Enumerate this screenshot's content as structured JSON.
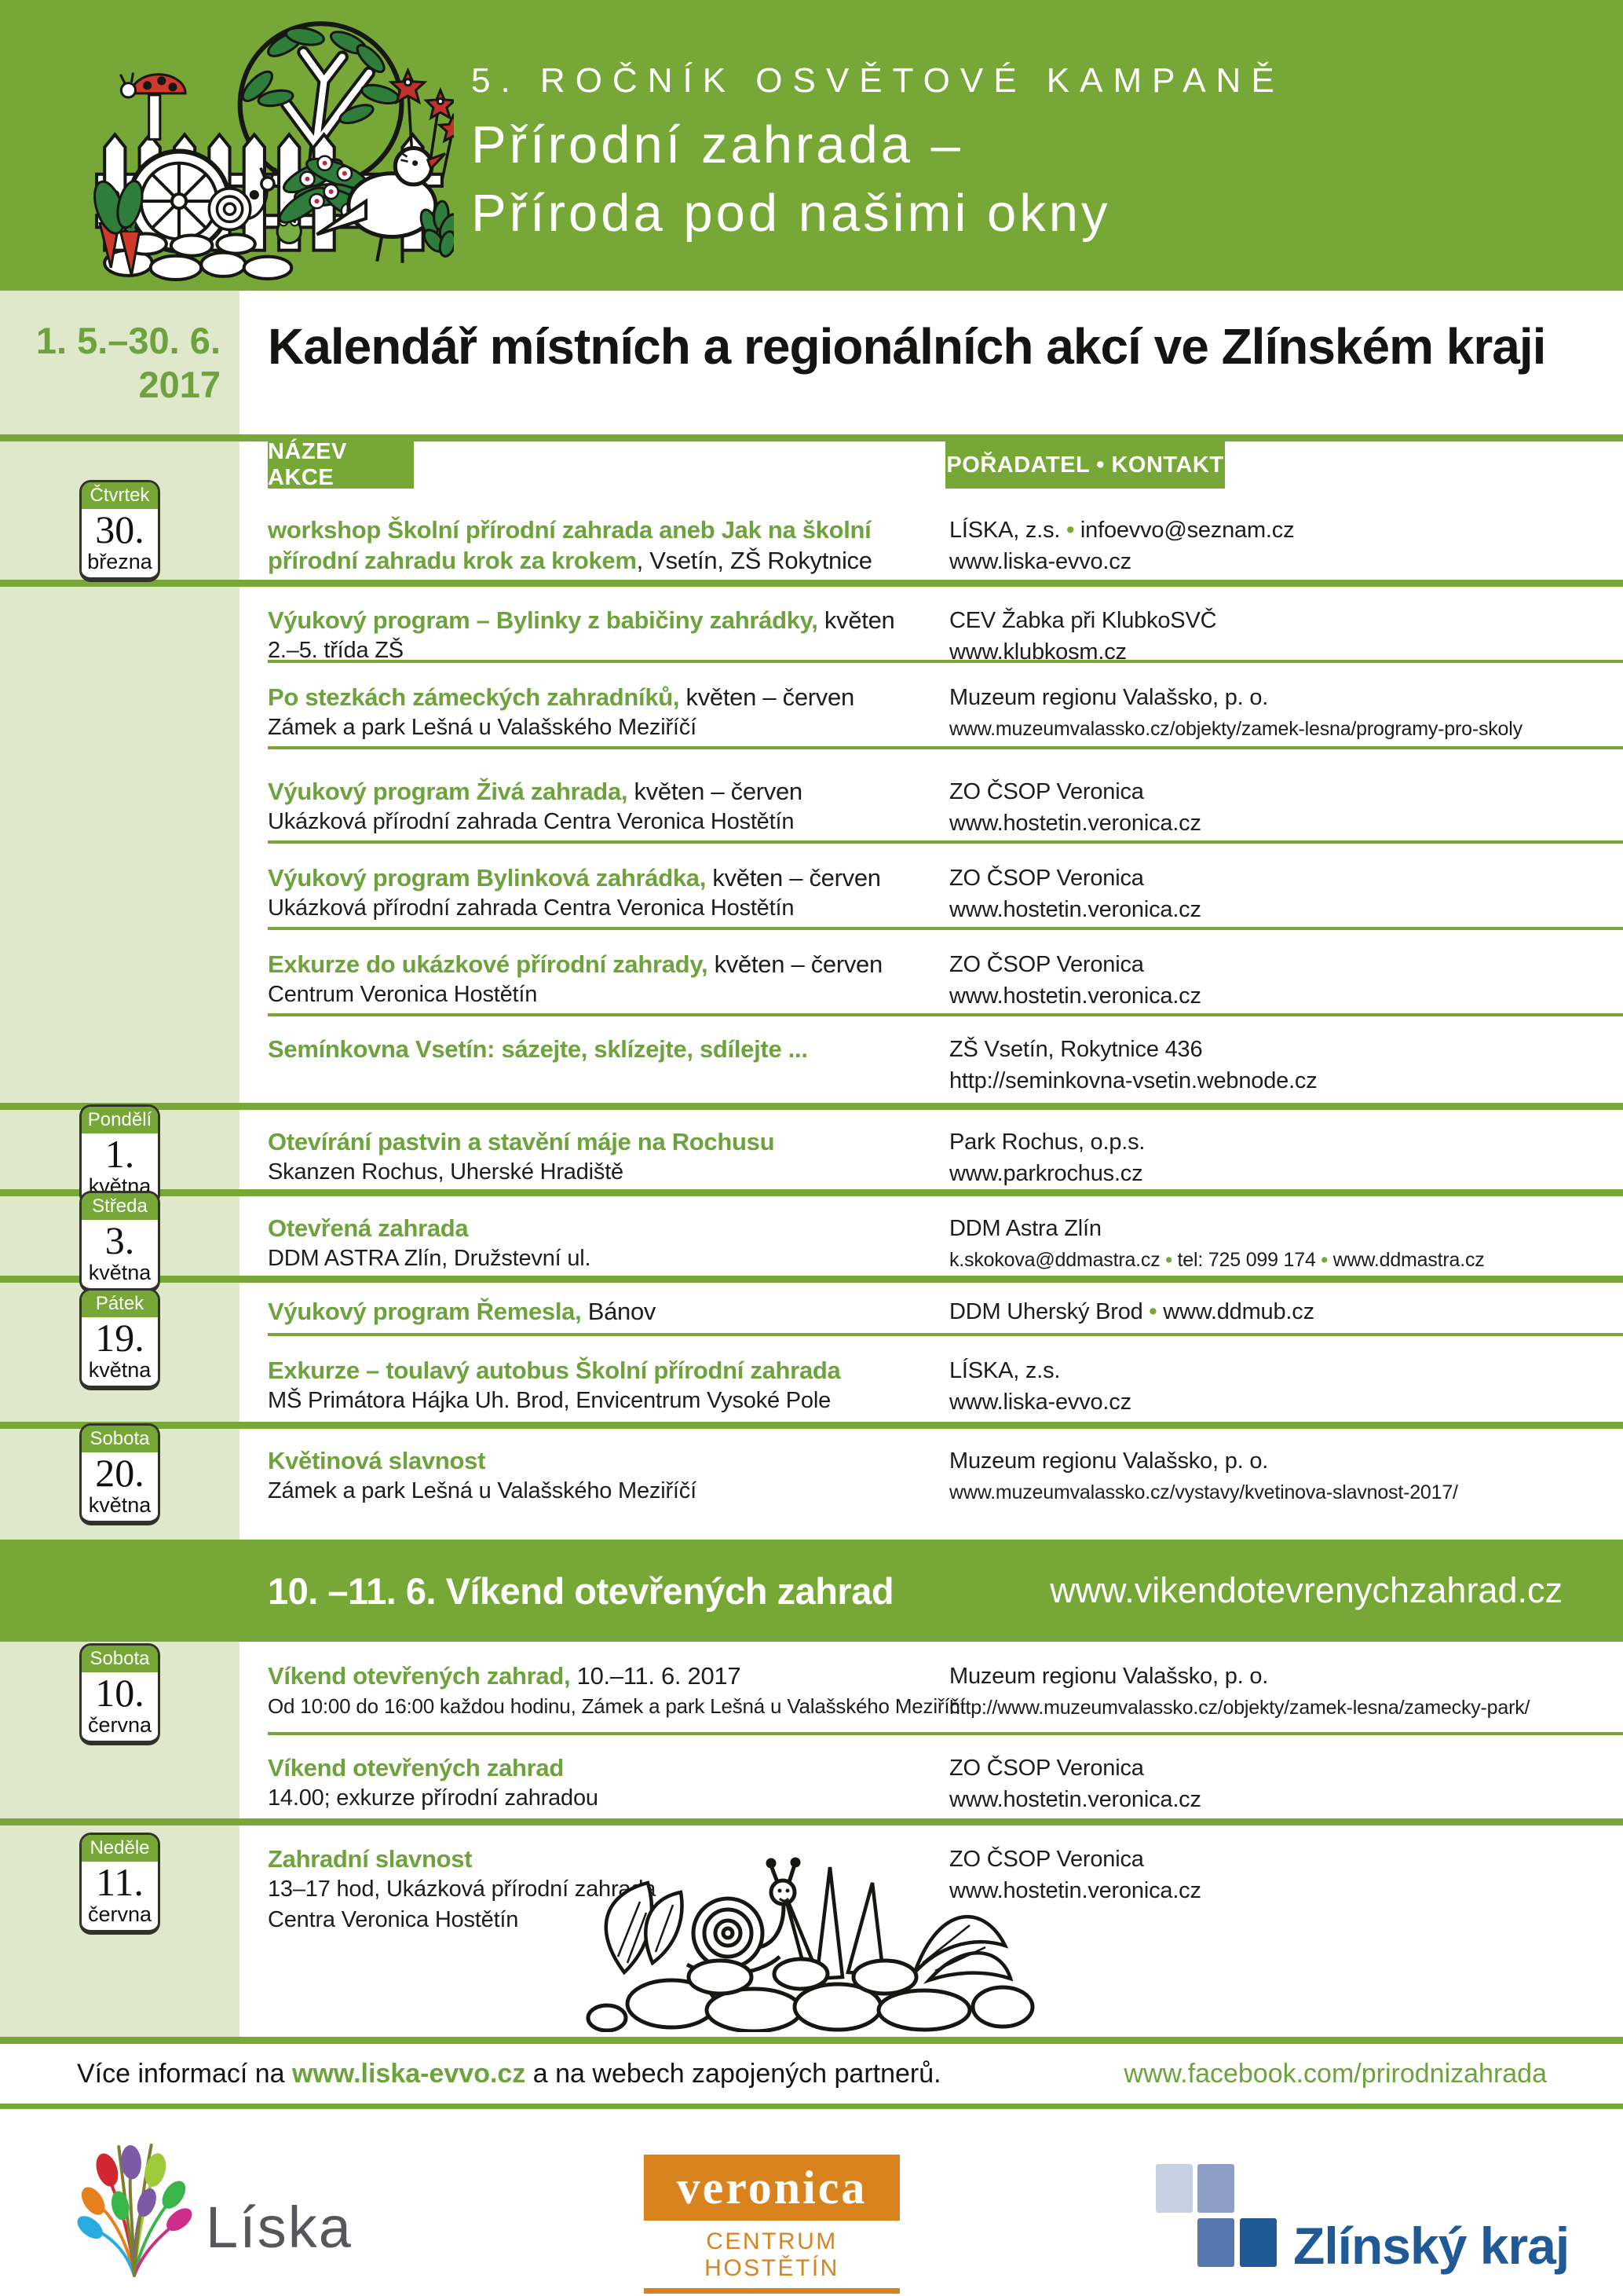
{
  "header": {
    "campaign": "5. ROČNÍK OSVĚTOVÉ KAMPANĚ",
    "title_line1": "Přírodní zahrada –",
    "title_line2": "Příroda pod našimi okny"
  },
  "date_range": {
    "line1": "1. 5.–30. 6.",
    "line2": "2017"
  },
  "page_title": "Kalendář místních a regionálních akcí ve Zlínském kraji",
  "table": {
    "col1": "NÁZEV AKCE",
    "col2": "POŘADATEL • KONTAKT"
  },
  "events": [
    {
      "badge": {
        "day": "Čtvrtek",
        "num": "30.",
        "month": "března"
      },
      "title": "workshop Školní přírodní zahrada aneb Jak na školní přírodní zahradu krok za krokem",
      "rest": ", Vsetín, ZŠ Rokytnice",
      "details": [],
      "right": [
        "LÍSKA, z.s. • infoevvo@seznam.cz",
        "www.liska-evvo.cz"
      ],
      "divider": null
    },
    {
      "title": "Výukový program – Bylinky z babičiny zahrádky,",
      "rest": " květen",
      "details": [
        "2.–5. třída ZŠ"
      ],
      "right": [
        "CEV Žabka při KlubkoSVČ",
        "www.klubkosm.cz"
      ],
      "divider": "thick"
    },
    {
      "title": "Po stezkách zámeckých zahradníků,",
      "rest": " květen – červen",
      "details": [
        "Zámek a park Lešná u Valašského Meziříčí"
      ],
      "right": [
        "Muzeum regionu Valašsko, p. o.",
        "www.muzeumvalassko.cz/objekty/zamek-lesna/programy-pro-skoly"
      ],
      "divider": "thin"
    },
    {
      "title": "Výukový program Živá zahrada,",
      "rest": " květen – červen",
      "details": [
        "Ukázková přírodní zahrada Centra Veronica Hostětín"
      ],
      "right": [
        "ZO ČSOP Veronica",
        "www.hostetin.veronica.cz"
      ],
      "divider": "thin"
    },
    {
      "title": "Výukový program Bylinková zahrádka,",
      "rest": " květen – červen",
      "details": [
        "Ukázková přírodní zahrada Centra Veronica Hostětín"
      ],
      "right": [
        "ZO ČSOP Veronica",
        "www.hostetin.veronica.cz"
      ],
      "divider": "thin"
    },
    {
      "title": "Exkurze do ukázkové přírodní zahrady,",
      "rest": " květen – červen",
      "details": [
        "Centrum Veronica Hostětín"
      ],
      "right": [
        "ZO ČSOP Veronica",
        "www.hostetin.veronica.cz"
      ],
      "divider": "thin"
    },
    {
      "title": "Semínkovna Vsetín: sázejte, sklízejte, sdílejte ...",
      "rest": "",
      "details": [],
      "right": [
        "ZŠ Vsetín, Rokytnice 436",
        "http://seminkovna-vsetin.webnode.cz"
      ],
      "divider": "thin"
    },
    {
      "badge": {
        "day": "Pondělí",
        "num": "1.",
        "month": "května"
      },
      "title": "Otevírání pastvin a stavění máje na Rochusu",
      "rest": "",
      "details": [
        "Skanzen Rochus, Uherské Hradiště"
      ],
      "right": [
        "Park Rochus, o.p.s.",
        "www.parkrochus.cz"
      ],
      "divider": "thick"
    },
    {
      "badge": {
        "day": "Středa",
        "num": "3.",
        "month": "května"
      },
      "title": "Otevřená zahrada",
      "rest": "",
      "details": [
        "DDM ASTRA Zlín, Družstevní ul."
      ],
      "right": [
        "DDM Astra Zlín",
        "k.skokova@ddmastra.cz • tel: 725 099 174 • www.ddmastra.cz"
      ],
      "divider": "thick"
    },
    {
      "badge": {
        "day": "Pátek",
        "num": "19.",
        "month": "května"
      },
      "title": "Výukový program Řemesla,",
      "rest": " Bánov",
      "details": [],
      "right": [
        "DDM Uherský Brod • www.ddmub.cz"
      ],
      "divider": "thick"
    },
    {
      "title": "Exkurze – toulavý autobus Školní přírodní zahrada",
      "rest": "",
      "details": [
        "MŠ Primátora Hájka Uh. Brod, Envicentrum Vysoké Pole"
      ],
      "right": [
        "LÍSKA, z.s.",
        "www.liska-evvo.cz"
      ],
      "divider": "thin"
    },
    {
      "badge": {
        "day": "Sobota",
        "num": "20.",
        "month": "května"
      },
      "title": "Květinová slavnost",
      "rest": "",
      "details": [
        "Zámek a park Lešná u Valašského Meziříčí"
      ],
      "right": [
        "Muzeum regionu Valašsko, p. o.",
        "www.muzeumvalassko.cz/vystavy/kvetinova-slavnost-2017/"
      ],
      "divider": "thick"
    },
    {
      "badge": {
        "day": "Sobota",
        "num": "10.",
        "month": "června"
      },
      "title": "Víkend otevřených zahrad,",
      "rest": " 10.–11. 6. 2017",
      "details": [
        "Od 10:00 do 16:00 každou hodinu, Zámek a park Lešná u Valašského Meziříčí"
      ],
      "right": [
        "Muzeum regionu Valašsko, p. o.",
        "http://www.muzeumvalassko.cz/objekty/zamek-lesna/zamecky-park/"
      ],
      "divider": null
    },
    {
      "title": "Víkend otevřených zahrad",
      "rest": "",
      "details": [
        "14.00; exkurze přírodní zahradou"
      ],
      "right": [
        "ZO ČSOP Veronica",
        "www.hostetin.veronica.cz"
      ],
      "divider": "thin"
    },
    {
      "badge": {
        "day": "Neděle",
        "num": "11.",
        "month": "června"
      },
      "title": "Zahradní slavnost",
      "rest": "",
      "details": [
        "13–17 hod, Ukázková přírodní zahrada",
        "Centra Veronica Hostětín"
      ],
      "right": [
        "ZO ČSOP Veronica",
        "www.hostetin.veronica.cz"
      ],
      "divider": "thick",
      "snail": true
    }
  ],
  "banner": {
    "text": "10. –11. 6. Víkend otevřených zahrad",
    "url": "www.vikendotevrenychzahrad.cz"
  },
  "footer": {
    "prefix": "Více informací na ",
    "link": "www.liska-evvo.cz",
    "suffix": " a na webech zapojených partnerů.",
    "facebook": "www.facebook.com/prirodnizahrada"
  },
  "logos": {
    "liska": "Líska",
    "veronica_name": "veronica",
    "veronica_caption": "CENTRUM HOSTĚTÍN",
    "zlinsky": "Zlínský kraj"
  },
  "colors": {
    "green": "#76a737",
    "green_text": "#6da23d",
    "light_green": "#dfe8cb",
    "veronica_orange": "#d9831f",
    "zlinsky_blue": "#1f5a97"
  }
}
